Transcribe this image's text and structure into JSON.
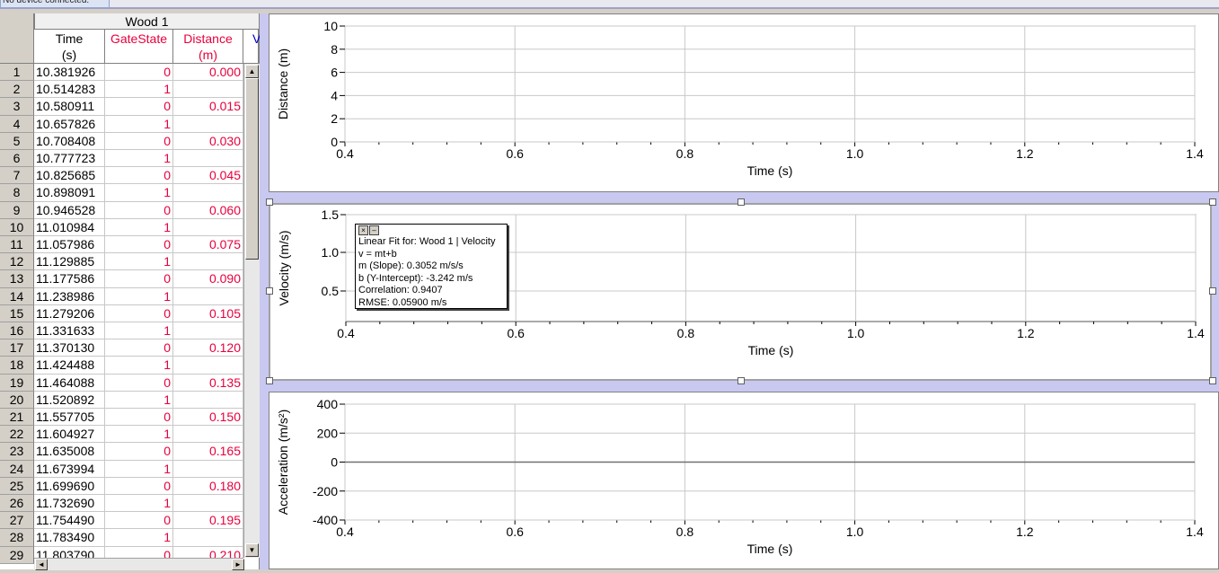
{
  "status": {
    "text": "No device connected."
  },
  "table": {
    "set_name": "Wood 1",
    "columns": [
      {
        "name": "Time",
        "unit": "(s)",
        "color": "#000000"
      },
      {
        "name": "GateState",
        "unit": "",
        "color": "#e8003c"
      },
      {
        "name": "Distance",
        "unit": "(m)",
        "color": "#e8003c"
      },
      {
        "name": "V",
        "unit": "",
        "color": "#0000cc"
      }
    ],
    "rows": [
      [
        "1",
        "10.381926",
        "0",
        "0.000"
      ],
      [
        "2",
        "10.514283",
        "1",
        ""
      ],
      [
        "3",
        "10.580911",
        "0",
        "0.015"
      ],
      [
        "4",
        "10.657826",
        "1",
        ""
      ],
      [
        "5",
        "10.708408",
        "0",
        "0.030"
      ],
      [
        "6",
        "10.777723",
        "1",
        ""
      ],
      [
        "7",
        "10.825685",
        "0",
        "0.045"
      ],
      [
        "8",
        "10.898091",
        "1",
        ""
      ],
      [
        "9",
        "10.946528",
        "0",
        "0.060"
      ],
      [
        "10",
        "11.010984",
        "1",
        ""
      ],
      [
        "11",
        "11.057986",
        "0",
        "0.075"
      ],
      [
        "12",
        "11.129885",
        "1",
        ""
      ],
      [
        "13",
        "11.177586",
        "0",
        "0.090"
      ],
      [
        "14",
        "11.238986",
        "1",
        ""
      ],
      [
        "15",
        "11.279206",
        "0",
        "0.105"
      ],
      [
        "16",
        "11.331633",
        "1",
        ""
      ],
      [
        "17",
        "11.370130",
        "0",
        "0.120"
      ],
      [
        "18",
        "11.424488",
        "1",
        ""
      ],
      [
        "19",
        "11.464088",
        "0",
        "0.135"
      ],
      [
        "20",
        "11.520892",
        "1",
        ""
      ],
      [
        "21",
        "11.557705",
        "0",
        "0.150"
      ],
      [
        "22",
        "11.604927",
        "1",
        ""
      ],
      [
        "23",
        "11.635008",
        "0",
        "0.165"
      ],
      [
        "24",
        "11.673994",
        "1",
        ""
      ],
      [
        "25",
        "11.699690",
        "0",
        "0.180"
      ],
      [
        "26",
        "11.732690",
        "1",
        ""
      ],
      [
        "27",
        "11.754490",
        "0",
        "0.195"
      ],
      [
        "28",
        "11.783490",
        "1",
        ""
      ],
      [
        "29",
        "11.803790",
        "0",
        "0.210"
      ]
    ],
    "scroll_icons": {
      "up": "arrow-up-icon",
      "down": "arrow-down-icon",
      "left": "arrow-left-icon",
      "right": "arrow-right-icon"
    }
  },
  "graphs": {
    "distance": {
      "ylabel": "Distance (m)",
      "xlabel": "Time (s)",
      "y_ticks": [
        "0",
        "2",
        "4",
        "6",
        "8",
        "10"
      ],
      "x_ticks": [
        "0.4",
        "0.6",
        "0.8",
        "1.0",
        "1.2",
        "1.4"
      ]
    },
    "velocity": {
      "ylabel": "Velocity (m/s)",
      "xlabel": "Time (s)",
      "y_ticks": [
        "0.5",
        "1.0",
        "1.5"
      ],
      "x_ticks": [
        "0.4",
        "0.6",
        "0.8",
        "1.0",
        "1.2",
        "1.4"
      ]
    },
    "acceleration": {
      "ylabel": "Acceleration (m/s²)",
      "xlabel": "Time (s)",
      "y_ticks": [
        "-400",
        "-200",
        "0",
        "200",
        "400"
      ],
      "x_ticks": [
        "0.4",
        "0.6",
        "0.8",
        "1.0",
        "1.2",
        "1.4"
      ]
    }
  },
  "fit_box": {
    "close_icon": "close-icon",
    "minimize_icon": "minimize-icon",
    "title": "Linear Fit for: Wood 1 | Velocity",
    "equation": "v = mt+b",
    "slope": "m (Slope): 0.3052 m/s/s",
    "intercept": "b (Y-Intercept): -3.242 m/s",
    "correlation": "Correlation: 0.9407",
    "rmse": "RMSE: 0.05900 m/s"
  }
}
